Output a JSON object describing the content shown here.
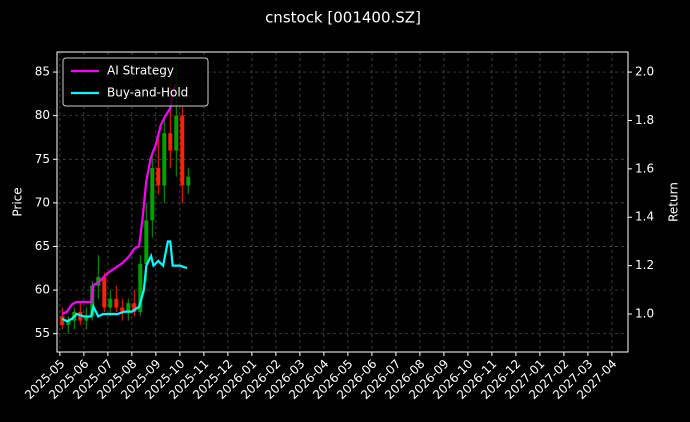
{
  "chart_data": {
    "type": "candlestick",
    "title": "cnstock [001400.SZ]",
    "ylabel": "Price",
    "y2label": "Return",
    "up_color": "#00a000",
    "down_color": "#ff2000",
    "grid": true,
    "legend": "upper left",
    "xlim": [
      -0.12,
      23.67
    ],
    "xticks": [
      {
        "value": 0,
        "label": "2025-05"
      },
      {
        "value": 1,
        "label": "2025-06"
      },
      {
        "value": 2,
        "label": "2025-07"
      },
      {
        "value": 3,
        "label": "2025-08"
      },
      {
        "value": 4,
        "label": "2025-09"
      },
      {
        "value": 5,
        "label": "2025-10"
      },
      {
        "value": 6,
        "label": "2025-11"
      },
      {
        "value": 7,
        "label": "2025-12"
      },
      {
        "value": 8,
        "label": "2026-01"
      },
      {
        "value": 9,
        "label": "2026-02"
      },
      {
        "value": 10,
        "label": "2026-03"
      },
      {
        "value": 11,
        "label": "2026-04"
      },
      {
        "value": 12,
        "label": "2026-05"
      },
      {
        "value": 13,
        "label": "2026-06"
      },
      {
        "value": 14,
        "label": "2026-07"
      },
      {
        "value": 15,
        "label": "2026-08"
      },
      {
        "value": 16,
        "label": "2026-09"
      },
      {
        "value": 17,
        "label": "2026-10"
      },
      {
        "value": 18,
        "label": "2026-11"
      },
      {
        "value": 19,
        "label": "2026-12"
      },
      {
        "value": 20,
        "label": "2027-01"
      },
      {
        "value": 21,
        "label": "2027-02"
      },
      {
        "value": 22,
        "label": "2027-03"
      },
      {
        "value": 23,
        "label": "2027-04"
      }
    ],
    "ylim": [
      52.9,
      87.3
    ],
    "yticks": [
      55,
      60,
      65,
      70,
      75,
      80,
      85
    ],
    "y2lim": [
      0.843,
      2.083
    ],
    "y2ticks": [
      {
        "value": 1.0,
        "label": "1.0"
      },
      1.2,
      1.4,
      1.6,
      1.8,
      {
        "value": 2.0,
        "label": "2.0"
      }
    ],
    "x": [
      0.1,
      0.35,
      0.6,
      0.85,
      1.1,
      1.35,
      1.6,
      1.85,
      2.1,
      2.35,
      2.6,
      2.85,
      3.1,
      3.35,
      3.6,
      3.85,
      4.1,
      4.35,
      4.6,
      4.85,
      5.1,
      5.35
    ],
    "open": [
      57,
      56,
      56.5,
      57.5,
      56.5,
      57,
      60.5,
      61.5,
      58,
      59,
      58,
      57.5,
      58.5,
      57.5,
      63,
      68,
      74,
      72,
      78,
      76,
      80,
      72
    ],
    "high": [
      58,
      57,
      58,
      58.5,
      58,
      61,
      64,
      62,
      60,
      60.5,
      59,
      59,
      60,
      64,
      70,
      76,
      78,
      80,
      84,
      86,
      81,
      74
    ],
    "low": [
      55.5,
      55,
      55.5,
      56,
      55.5,
      56.5,
      59,
      57.5,
      57,
      57.5,
      56.5,
      56.5,
      57,
      57,
      61,
      66,
      71,
      70,
      74,
      73,
      70,
      71
    ],
    "close": [
      56,
      56.5,
      57.5,
      56.5,
      57,
      60.5,
      61.5,
      58,
      59,
      58,
      57.5,
      58.5,
      57.5,
      63,
      68,
      74,
      72,
      78,
      76,
      80,
      72,
      73
    ],
    "series": [
      {
        "name": "AI Strategy",
        "color": "#ff00ff",
        "axis": "y2",
        "x": [
          0.1,
          0.3,
          0.5,
          0.7,
          1.0,
          1.3,
          1.4,
          1.6,
          1.8,
          2.0,
          2.3,
          2.6,
          2.9,
          3.1,
          3.3,
          3.45,
          3.6,
          3.8,
          4.0,
          4.2,
          4.4,
          4.6,
          4.8
        ],
        "values": [
          1.0,
          1.01,
          1.04,
          1.05,
          1.05,
          1.05,
          1.12,
          1.13,
          1.15,
          1.17,
          1.19,
          1.21,
          1.24,
          1.27,
          1.28,
          1.4,
          1.55,
          1.65,
          1.7,
          1.78,
          1.82,
          1.85,
          1.95
        ]
      },
      {
        "name": "Buy-and-Hold",
        "color": "#00ffff",
        "axis": "y2",
        "x": [
          0.1,
          0.3,
          0.5,
          0.7,
          1.0,
          1.3,
          1.4,
          1.6,
          1.8,
          2.1,
          2.4,
          2.7,
          3.0,
          3.3,
          3.5,
          3.6,
          3.8,
          3.9,
          4.1,
          4.3,
          4.5,
          4.6,
          4.7,
          5.0,
          5.3
        ],
        "values": [
          0.98,
          0.97,
          0.98,
          1.0,
          0.99,
          0.99,
          1.03,
          0.99,
          1.0,
          1.0,
          1.0,
          1.01,
          1.01,
          1.03,
          1.1,
          1.2,
          1.24,
          1.2,
          1.22,
          1.2,
          1.3,
          1.3,
          1.2,
          1.2,
          1.19
        ]
      }
    ]
  }
}
